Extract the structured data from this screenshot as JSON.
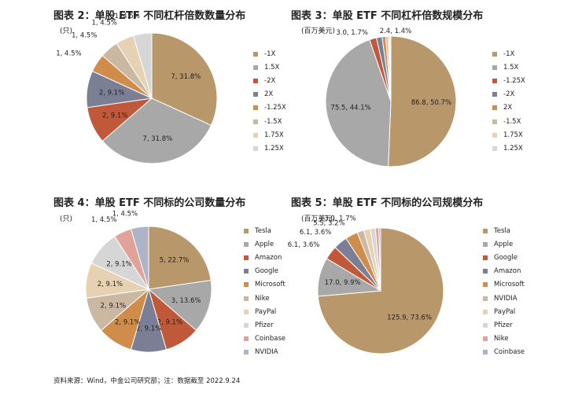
{
  "footer": "资料来源：Wind，中金公司研究部；注：数据截至 2022.9.24",
  "chart_data": [
    {
      "id": "fig2",
      "type": "pie",
      "title": "图表 2：单股 ETF 不同杠杆倍数数量分布",
      "unit": "(只)",
      "slices": [
        {
          "name": "-1X",
          "value": 7,
          "pct": 31.8,
          "label": "7, 31.8%",
          "color": "#B8976A"
        },
        {
          "name": "1.5X",
          "value": 7,
          "pct": 31.8,
          "label": "7, 31.8%",
          "color": "#A8A8A8"
        },
        {
          "name": "-2X",
          "value": 2,
          "pct": 9.1,
          "label": "2, 9.1%",
          "color": "#C0583A"
        },
        {
          "name": "2X",
          "value": 2,
          "pct": 9.1,
          "label": "2, 9.1%",
          "color": "#7B7F95"
        },
        {
          "name": "-1.25X",
          "value": 1,
          "pct": 4.5,
          "label": "1, 4.5%",
          "color": "#D08C4A"
        },
        {
          "name": "-1.5X",
          "value": 1,
          "pct": 4.5,
          "label": "1, 4.5%",
          "color": "#CBB8A3"
        },
        {
          "name": "1.75X",
          "value": 1,
          "pct": 4.5,
          "label": "1, 4.5%",
          "color": "#E6D2B2"
        },
        {
          "name": "1.25X",
          "value": 1,
          "pct": 4.5,
          "label": "1, 4.5%",
          "color": "#D6D6D6"
        }
      ]
    },
    {
      "id": "fig3",
      "type": "pie",
      "title": "图表 3：单股 ETF 不同杠杆倍数规模分布",
      "unit": "(百万美元)",
      "slices": [
        {
          "name": "-1X",
          "value": 86.8,
          "pct": 50.7,
          "label": "86.8, 50.7%",
          "color": "#B8976A"
        },
        {
          "name": "1.5X",
          "value": 75.5,
          "pct": 44.1,
          "label": "75.5, 44.1%",
          "color": "#A8A8A8"
        },
        {
          "name": "-1.25X",
          "value": 3.0,
          "pct": 1.7,
          "label": "3.0, 1.7%",
          "color": "#C0583A"
        },
        {
          "name": "-2X",
          "value": 2.4,
          "pct": 1.4,
          "label": "2.4, 1.4%",
          "color": "#7B7F95"
        },
        {
          "name": "2X",
          "value": 1.5,
          "pct": 0.9,
          "label": "",
          "color": "#D08C4A"
        },
        {
          "name": "-1.5X",
          "value": 1.0,
          "pct": 0.6,
          "label": "",
          "color": "#CBB8A3"
        },
        {
          "name": "1.75X",
          "value": 0.7,
          "pct": 0.4,
          "label": "",
          "color": "#E6D2B2"
        },
        {
          "name": "1.25X",
          "value": 0.5,
          "pct": 0.3,
          "label": "",
          "color": "#D6D6D6"
        }
      ]
    },
    {
      "id": "fig4",
      "type": "pie",
      "title": "图表 4：单股 ETF 不同标的公司数量分布",
      "unit": "(只)",
      "slices": [
        {
          "name": "Tesla",
          "value": 5,
          "pct": 22.7,
          "label": "5, 22.7%",
          "color": "#B8976A"
        },
        {
          "name": "Apple",
          "value": 3,
          "pct": 13.6,
          "label": "3, 13.6%",
          "color": "#A8A8A8"
        },
        {
          "name": "Amazon",
          "value": 2,
          "pct": 9.1,
          "label": "2, 9.1%",
          "color": "#C0583A"
        },
        {
          "name": "Google",
          "value": 2,
          "pct": 9.1,
          "label": "2, 9.1%",
          "color": "#7B7F95"
        },
        {
          "name": "Microsoft",
          "value": 2,
          "pct": 9.1,
          "label": "2, 9.1%",
          "color": "#D08C4A"
        },
        {
          "name": "Nike",
          "value": 2,
          "pct": 9.1,
          "label": "2, 9.1%",
          "color": "#CBB8A3"
        },
        {
          "name": "PayPal",
          "value": 2,
          "pct": 9.1,
          "label": "2, 9.1%",
          "color": "#E6D2B2"
        },
        {
          "name": "Pfizer",
          "value": 2,
          "pct": 9.1,
          "label": "2, 9.1%",
          "color": "#D6D6D6"
        },
        {
          "name": "Coinbase",
          "value": 1,
          "pct": 4.5,
          "label": "1, 4.5%",
          "color": "#E0A39A"
        },
        {
          "name": "NVIDIA",
          "value": 1,
          "pct": 4.5,
          "label": "1, 4.5%",
          "color": "#AEB3C7"
        }
      ]
    },
    {
      "id": "fig5",
      "type": "pie",
      "title": "图表 5：单股 ETF 不同标的公司规模分布",
      "unit": "(百万美元)",
      "slices": [
        {
          "name": "Tesla",
          "value": 125.9,
          "pct": 73.6,
          "label": "125.9, 73.6%",
          "color": "#B8976A"
        },
        {
          "name": "Apple",
          "value": 17.0,
          "pct": 9.9,
          "label": "17.0, 9.9%",
          "color": "#A8A8A8"
        },
        {
          "name": "Google",
          "value": 6.1,
          "pct": 3.6,
          "label": "6.1, 3.6%",
          "color": "#C0583A"
        },
        {
          "name": "Amazon",
          "value": 6.1,
          "pct": 3.6,
          "label": "6.1, 3.6%",
          "color": "#7B7F95"
        },
        {
          "name": "Microsoft",
          "value": 5.5,
          "pct": 3.2,
          "label": "5.5, 3.2%",
          "color": "#D08C4A"
        },
        {
          "name": "NVIDIA",
          "value": 3.0,
          "pct": 1.7,
          "label": "3.0, 1.7%",
          "color": "#CBB8A3"
        },
        {
          "name": "PayPal",
          "value": 2.9,
          "pct": 1.7,
          "label": "",
          "color": "#E6D2B2"
        },
        {
          "name": "Pfizer",
          "value": 2.2,
          "pct": 1.3,
          "label": "",
          "color": "#D6D6D6"
        },
        {
          "name": "Nike",
          "value": 1.5,
          "pct": 0.9,
          "label": "",
          "color": "#E0A39A"
        },
        {
          "name": "Coinbase",
          "value": 0.8,
          "pct": 0.5,
          "label": "",
          "color": "#AEB3C7"
        }
      ]
    }
  ]
}
